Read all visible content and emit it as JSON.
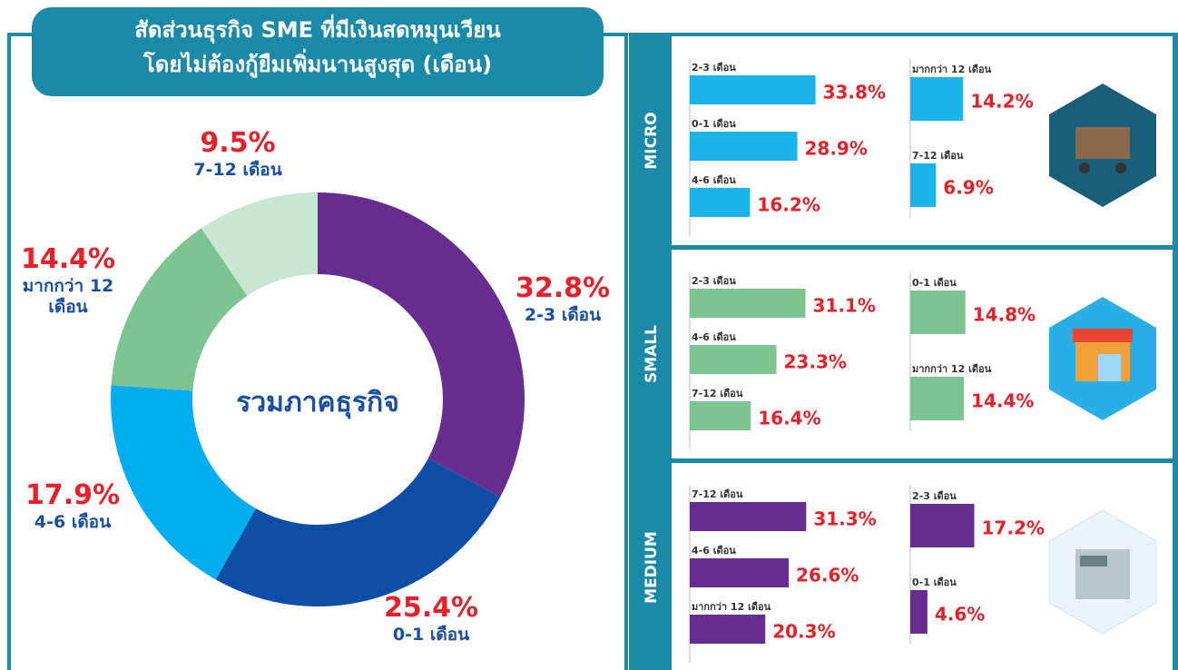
{
  "chart_data": [
    {
      "type": "pie",
      "donut": true,
      "title": "สัดส่วนธุรกิจ SME ที่มีเงินสดหมุนเวียน",
      "subtitle": "โดยไม่ต้องกู้ยืมเพิ่มนานสูงสุด (เดือน)",
      "center_label": "รวมภาคธุรกิจ",
      "categories": [
        "2-3 เดือน",
        "0-1 เดือน",
        "4-6 เดือน",
        "มากกว่า 12 เดือน",
        "7-12 เดือน"
      ],
      "values": [
        32.8,
        25.4,
        17.9,
        14.4,
        9.5
      ],
      "value_labels": [
        "32.8%",
        "25.4%",
        "17.9%",
        "14.4%",
        "9.5%"
      ],
      "colors": [
        "#662d91",
        "#0d4ea6",
        "#00aeef",
        "#7cc491",
        "#c8e6d2"
      ]
    },
    {
      "type": "bar",
      "title": "MICRO",
      "color": "#1bb3e8",
      "categories": [
        "2-3 เดือน",
        "0-1 เดือน",
        "4-6 เดือน",
        "มากกว่า 12 เดือน",
        "7-12 เดือน"
      ],
      "values": [
        33.8,
        28.9,
        16.2,
        14.2,
        6.9
      ],
      "value_labels": [
        "33.8%",
        "28.9%",
        "16.2%",
        "14.2%",
        "6.9%"
      ]
    },
    {
      "type": "bar",
      "title": "SMALL",
      "color": "#7cc491",
      "categories": [
        "2-3 เดือน",
        "4-6 เดือน",
        "7-12 เดือน",
        "0-1 เดือน",
        "มากกว่า 12 เดือน"
      ],
      "values": [
        31.1,
        23.3,
        16.4,
        14.8,
        14.4
      ],
      "value_labels": [
        "31.1%",
        "23.3%",
        "16.4%",
        "14.8%",
        "14.4%"
      ]
    },
    {
      "type": "bar",
      "title": "MEDIUM",
      "color": "#662d91",
      "categories": [
        "7-12 เดือน",
        "4-6 เดือน",
        "มากกว่า 12 เดือน",
        "2-3 เดือน",
        "0-1 เดือน"
      ],
      "values": [
        31.3,
        26.6,
        20.3,
        17.2,
        4.6
      ],
      "value_labels": [
        "31.3%",
        "26.6%",
        "20.3%",
        "17.2%",
        "4.6%"
      ]
    }
  ]
}
